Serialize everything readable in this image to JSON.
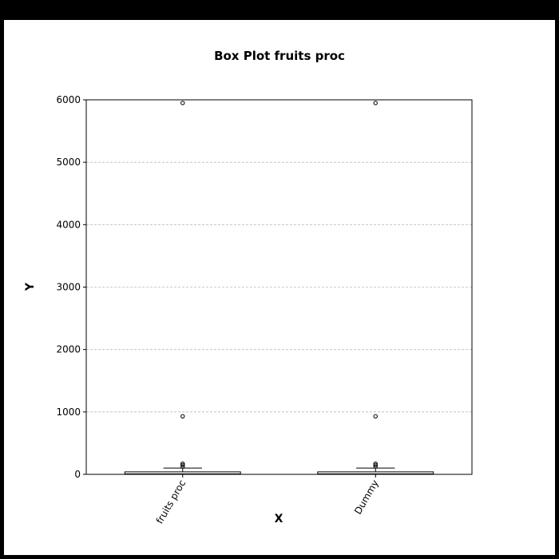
{
  "chart_data": {
    "type": "box",
    "title": "Box Plot fruits proc",
    "xlabel": "X",
    "ylabel": "Y",
    "ylim": [
      0,
      6000
    ],
    "yticks": [
      0,
      1000,
      2000,
      3000,
      4000,
      5000,
      6000
    ],
    "grid": true,
    "categories": [
      "fruits proc",
      "Dummy"
    ],
    "boxes": [
      {
        "category": "fruits proc",
        "whisker_low": 0,
        "q1": 3,
        "median": 8,
        "q3": 40,
        "whisker_high": 100,
        "outliers": [
          125,
          150,
          170,
          930,
          5950
        ]
      },
      {
        "category": "Dummy",
        "whisker_low": 0,
        "q1": 3,
        "median": 8,
        "q3": 40,
        "whisker_high": 100,
        "outliers": [
          125,
          150,
          170,
          930,
          5950
        ]
      }
    ],
    "colors": {
      "frame": "#000000",
      "grid": "#bbbbbb",
      "box": "#000000"
    }
  }
}
